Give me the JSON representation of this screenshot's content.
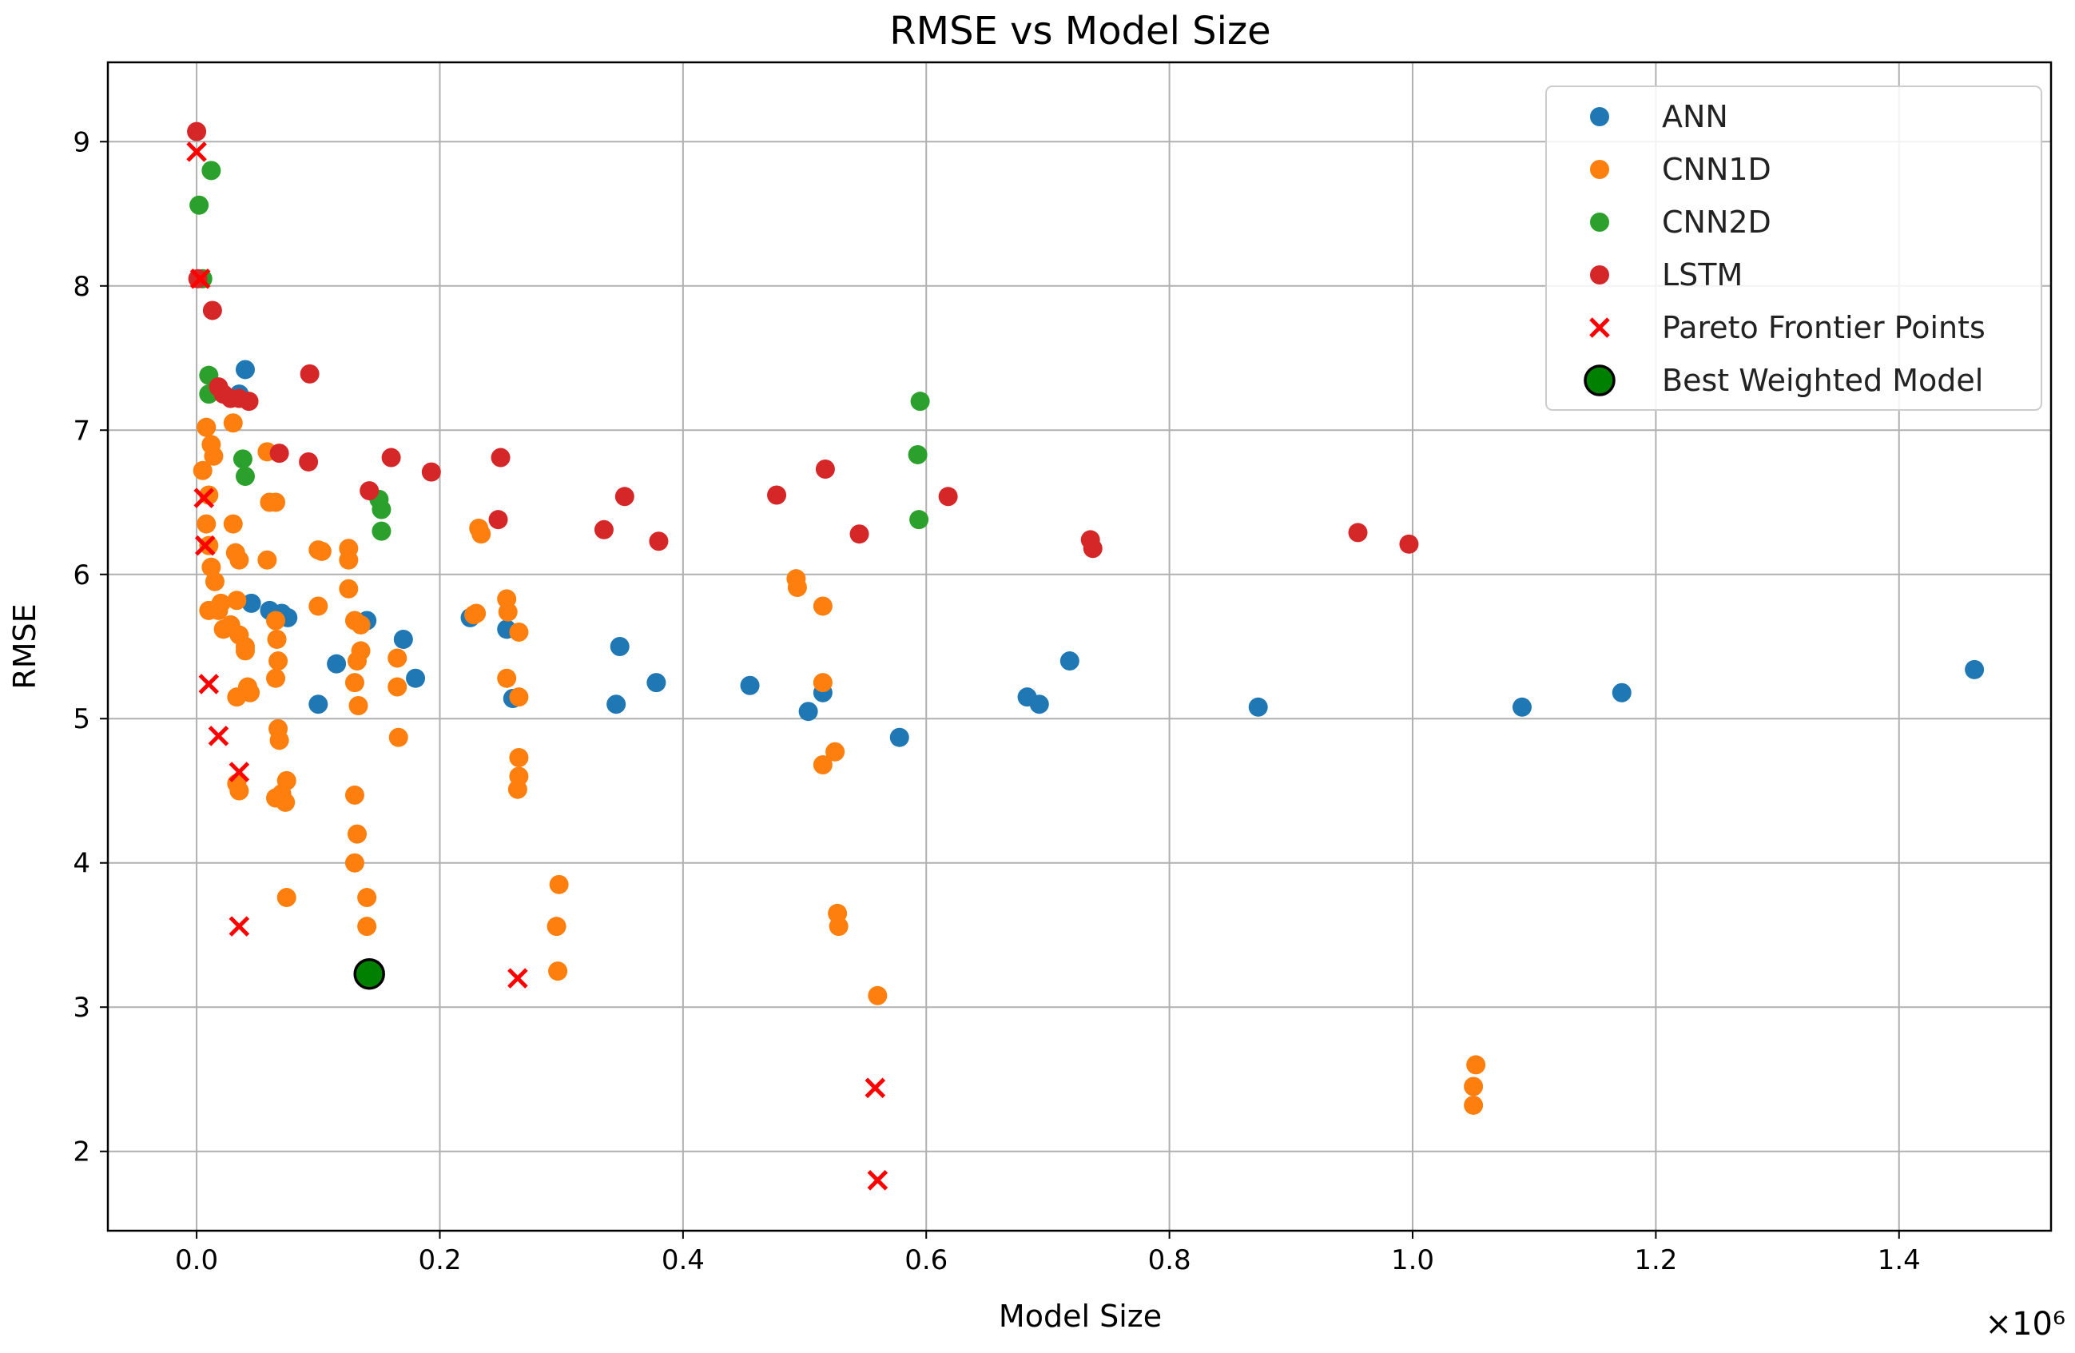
{
  "chart_data": {
    "type": "scatter",
    "title": "RMSE vs Model Size",
    "xlabel": "Model Size",
    "ylabel": "RMSE",
    "x_offset_label": "×10⁶",
    "xlim": [
      -0.073,
      1.525
    ],
    "ylim": [
      1.45,
      9.55
    ],
    "xticks": [
      0.0,
      0.2,
      0.4,
      0.6,
      0.8,
      1.0,
      1.2,
      1.4
    ],
    "xtick_labels": [
      "0.0",
      "0.2",
      "0.4",
      "0.6",
      "0.8",
      "1.0",
      "1.2",
      "1.4"
    ],
    "yticks": [
      2,
      3,
      4,
      5,
      6,
      7,
      8,
      9
    ],
    "ytick_labels": [
      "2",
      "3",
      "4",
      "5",
      "6",
      "7",
      "8",
      "9"
    ],
    "grid": true,
    "legend_position": "top-right",
    "colors": {
      "ANN": "#1f77b4",
      "CNN1D": "#ff7f0e",
      "CNN2D": "#2ca02c",
      "LSTM": "#d62728",
      "pareto": "#ff0000",
      "best": "#008000"
    },
    "series": [
      {
        "name": "ANN",
        "marker": "circle",
        "color": "#1f77b4",
        "points": [
          [
            0.04,
            7.42
          ],
          [
            0.035,
            7.25
          ],
          [
            0.045,
            5.8
          ],
          [
            0.06,
            5.75
          ],
          [
            0.07,
            5.73
          ],
          [
            0.075,
            5.7
          ],
          [
            0.1,
            5.1
          ],
          [
            0.115,
            5.38
          ],
          [
            0.14,
            5.68
          ],
          [
            0.17,
            5.55
          ],
          [
            0.18,
            5.28
          ],
          [
            0.225,
            5.7
          ],
          [
            0.255,
            5.62
          ],
          [
            0.26,
            5.14
          ],
          [
            0.345,
            5.1
          ],
          [
            0.348,
            5.5
          ],
          [
            0.378,
            5.25
          ],
          [
            0.455,
            5.23
          ],
          [
            0.503,
            5.05
          ],
          [
            0.515,
            5.18
          ],
          [
            0.578,
            4.87
          ],
          [
            0.683,
            5.15
          ],
          [
            0.693,
            5.1
          ],
          [
            0.718,
            5.4
          ],
          [
            0.873,
            5.08
          ],
          [
            1.09,
            5.08
          ],
          [
            1.172,
            5.18
          ],
          [
            1.462,
            5.34
          ]
        ]
      },
      {
        "name": "CNN1D",
        "marker": "circle",
        "color": "#ff7f0e",
        "points": [
          [
            0.005,
            6.72
          ],
          [
            0.008,
            7.02
          ],
          [
            0.01,
            6.55
          ],
          [
            0.012,
            6.9
          ],
          [
            0.014,
            6.82
          ],
          [
            0.008,
            6.35
          ],
          [
            0.01,
            6.2
          ],
          [
            0.012,
            6.05
          ],
          [
            0.015,
            5.95
          ],
          [
            0.02,
            5.8
          ],
          [
            0.01,
            5.75
          ],
          [
            0.018,
            5.75
          ],
          [
            0.022,
            5.62
          ],
          [
            0.028,
            5.65
          ],
          [
            0.03,
            6.35
          ],
          [
            0.032,
            6.15
          ],
          [
            0.035,
            6.1
          ],
          [
            0.03,
            7.05
          ],
          [
            0.033,
            5.82
          ],
          [
            0.035,
            5.58
          ],
          [
            0.04,
            5.5
          ],
          [
            0.042,
            5.22
          ],
          [
            0.044,
            5.18
          ],
          [
            0.033,
            5.15
          ],
          [
            0.04,
            5.47
          ],
          [
            0.033,
            4.55
          ],
          [
            0.035,
            4.5
          ],
          [
            0.058,
            6.85
          ],
          [
            0.06,
            6.5
          ],
          [
            0.065,
            6.5
          ],
          [
            0.058,
            6.1
          ],
          [
            0.065,
            5.68
          ],
          [
            0.066,
            5.55
          ],
          [
            0.067,
            5.4
          ],
          [
            0.065,
            5.28
          ],
          [
            0.067,
            4.93
          ],
          [
            0.068,
            4.85
          ],
          [
            0.07,
            4.48
          ],
          [
            0.065,
            4.45
          ],
          [
            0.073,
            4.42
          ],
          [
            0.074,
            4.57
          ],
          [
            0.074,
            3.76
          ],
          [
            0.1,
            6.17
          ],
          [
            0.103,
            6.16
          ],
          [
            0.1,
            5.78
          ],
          [
            0.125,
            6.18
          ],
          [
            0.125,
            6.1
          ],
          [
            0.125,
            5.9
          ],
          [
            0.13,
            5.68
          ],
          [
            0.132,
            5.4
          ],
          [
            0.135,
            5.47
          ],
          [
            0.13,
            5.25
          ],
          [
            0.133,
            5.09
          ],
          [
            0.13,
            4.47
          ],
          [
            0.132,
            4.2
          ],
          [
            0.13,
            4.0
          ],
          [
            0.14,
            3.76
          ],
          [
            0.14,
            3.56
          ],
          [
            0.135,
            5.65
          ],
          [
            0.165,
            5.42
          ],
          [
            0.165,
            5.22
          ],
          [
            0.166,
            4.87
          ],
          [
            0.232,
            6.32
          ],
          [
            0.234,
            6.28
          ],
          [
            0.228,
            5.72
          ],
          [
            0.23,
            5.73
          ],
          [
            0.255,
            5.83
          ],
          [
            0.256,
            5.74
          ],
          [
            0.255,
            5.28
          ],
          [
            0.265,
            5.6
          ],
          [
            0.265,
            5.15
          ],
          [
            0.265,
            4.73
          ],
          [
            0.265,
            4.6
          ],
          [
            0.264,
            4.51
          ],
          [
            0.298,
            3.85
          ],
          [
            0.296,
            3.56
          ],
          [
            0.297,
            3.25
          ],
          [
            0.493,
            5.97
          ],
          [
            0.494,
            5.91
          ],
          [
            0.515,
            5.78
          ],
          [
            0.515,
            5.25
          ],
          [
            0.515,
            4.68
          ],
          [
            0.525,
            4.77
          ],
          [
            0.527,
            3.65
          ],
          [
            0.528,
            3.56
          ],
          [
            0.56,
            3.08
          ],
          [
            1.05,
            2.45
          ],
          [
            1.05,
            2.32
          ],
          [
            1.052,
            2.6
          ]
        ]
      },
      {
        "name": "CNN2D",
        "marker": "circle",
        "color": "#2ca02c",
        "points": [
          [
            0.012,
            8.8
          ],
          [
            0.002,
            8.56
          ],
          [
            0.005,
            8.05
          ],
          [
            0.01,
            7.38
          ],
          [
            0.01,
            7.25
          ],
          [
            0.038,
            6.8
          ],
          [
            0.04,
            6.68
          ],
          [
            0.15,
            6.52
          ],
          [
            0.152,
            6.45
          ],
          [
            0.152,
            6.3
          ],
          [
            0.595,
            7.2
          ],
          [
            0.593,
            6.83
          ],
          [
            0.594,
            6.38
          ]
        ]
      },
      {
        "name": "LSTM",
        "marker": "circle",
        "color": "#d62728",
        "points": [
          [
            0.0,
            9.07
          ],
          [
            0.001,
            8.05
          ],
          [
            0.013,
            7.83
          ],
          [
            0.018,
            7.3
          ],
          [
            0.022,
            7.25
          ],
          [
            0.028,
            7.22
          ],
          [
            0.035,
            7.22
          ],
          [
            0.043,
            7.2
          ],
          [
            0.093,
            7.39
          ],
          [
            0.068,
            6.84
          ],
          [
            0.092,
            6.78
          ],
          [
            0.142,
            6.58
          ],
          [
            0.16,
            6.81
          ],
          [
            0.193,
            6.71
          ],
          [
            0.25,
            6.81
          ],
          [
            0.248,
            6.38
          ],
          [
            0.335,
            6.31
          ],
          [
            0.352,
            6.54
          ],
          [
            0.38,
            6.23
          ],
          [
            0.477,
            6.55
          ],
          [
            0.517,
            6.73
          ],
          [
            0.545,
            6.28
          ],
          [
            0.618,
            6.54
          ],
          [
            0.735,
            6.24
          ],
          [
            0.737,
            6.18
          ],
          [
            0.955,
            6.29
          ],
          [
            0.997,
            6.21
          ]
        ]
      },
      {
        "name": "Pareto Frontier Points",
        "marker": "x",
        "color": "#ff0000",
        "points": [
          [
            0.0,
            8.93
          ],
          [
            0.003,
            8.05
          ],
          [
            0.006,
            6.53
          ],
          [
            0.007,
            6.2
          ],
          [
            0.01,
            5.24
          ],
          [
            0.018,
            4.88
          ],
          [
            0.035,
            4.63
          ],
          [
            0.035,
            3.56
          ],
          [
            0.264,
            3.2
          ],
          [
            0.558,
            2.44
          ],
          [
            0.56,
            1.8
          ]
        ]
      },
      {
        "name": "Best Weighted Model",
        "marker": "big-circle",
        "color": "#008000",
        "points": [
          [
            0.142,
            3.23
          ]
        ]
      }
    ]
  }
}
